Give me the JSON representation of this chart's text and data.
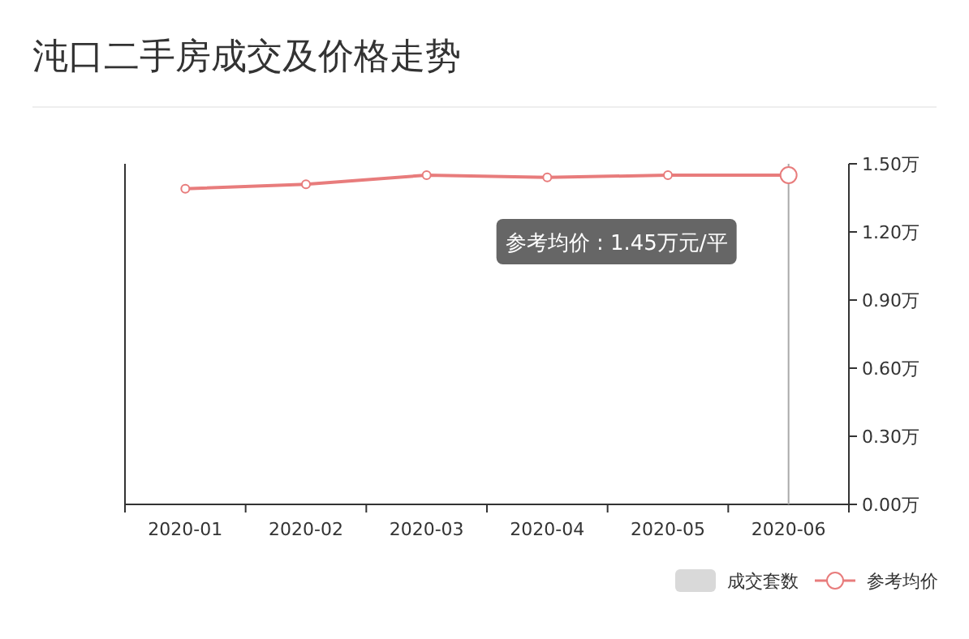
{
  "chart_data": {
    "type": "line",
    "title": "沌口二手房成交及价格走势",
    "categories": [
      "2020-01",
      "2020-02",
      "2020-03",
      "2020-04",
      "2020-05",
      "2020-06"
    ],
    "series": [
      {
        "name": "成交套数",
        "type": "bar",
        "color": "#d9d9d9",
        "values": [
          null,
          null,
          null,
          null,
          null,
          null
        ]
      },
      {
        "name": "参考均价",
        "axis": "y2",
        "color": "#e87c7c",
        "values": [
          1.39,
          1.41,
          1.45,
          1.44,
          1.45,
          1.45
        ]
      }
    ],
    "y2lim": [
      0,
      1.5
    ],
    "y2ticks": [
      {
        "value": 0,
        "label": "0.00万"
      },
      {
        "value": 0.3,
        "label": "0.30万"
      },
      {
        "value": 0.6,
        "label": "0.60万"
      },
      {
        "value": 0.9,
        "label": "0.90万"
      },
      {
        "value": 1.2,
        "label": "1.20万"
      },
      {
        "value": 1.5,
        "label": "1.50万"
      }
    ],
    "marker": "circle",
    "legend": "bottom right",
    "ref_lines": [
      {
        "axis": "x",
        "value": "2020-06",
        "color": "#aaaaaa"
      }
    ],
    "annotations": [
      "参考均价 : 1.45万元/平"
    ]
  }
}
